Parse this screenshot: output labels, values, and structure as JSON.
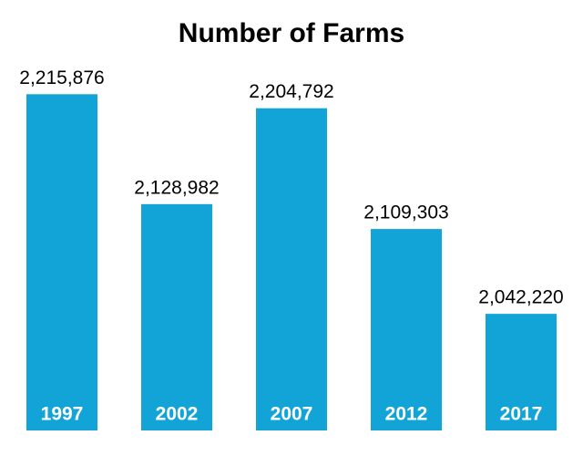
{
  "chart_data": {
    "type": "bar",
    "title": "Number of Farms",
    "categories": [
      "1997",
      "2002",
      "2007",
      "2012",
      "2017"
    ],
    "values": [
      2215876,
      2128982,
      2204792,
      2109303,
      2042220
    ],
    "value_labels": [
      "2,215,876",
      "2,128,982",
      "2,204,792",
      "2,109,303",
      "2,042,220"
    ],
    "color": "#12a4d7",
    "ylim": [
      1950000,
      2250000
    ]
  }
}
